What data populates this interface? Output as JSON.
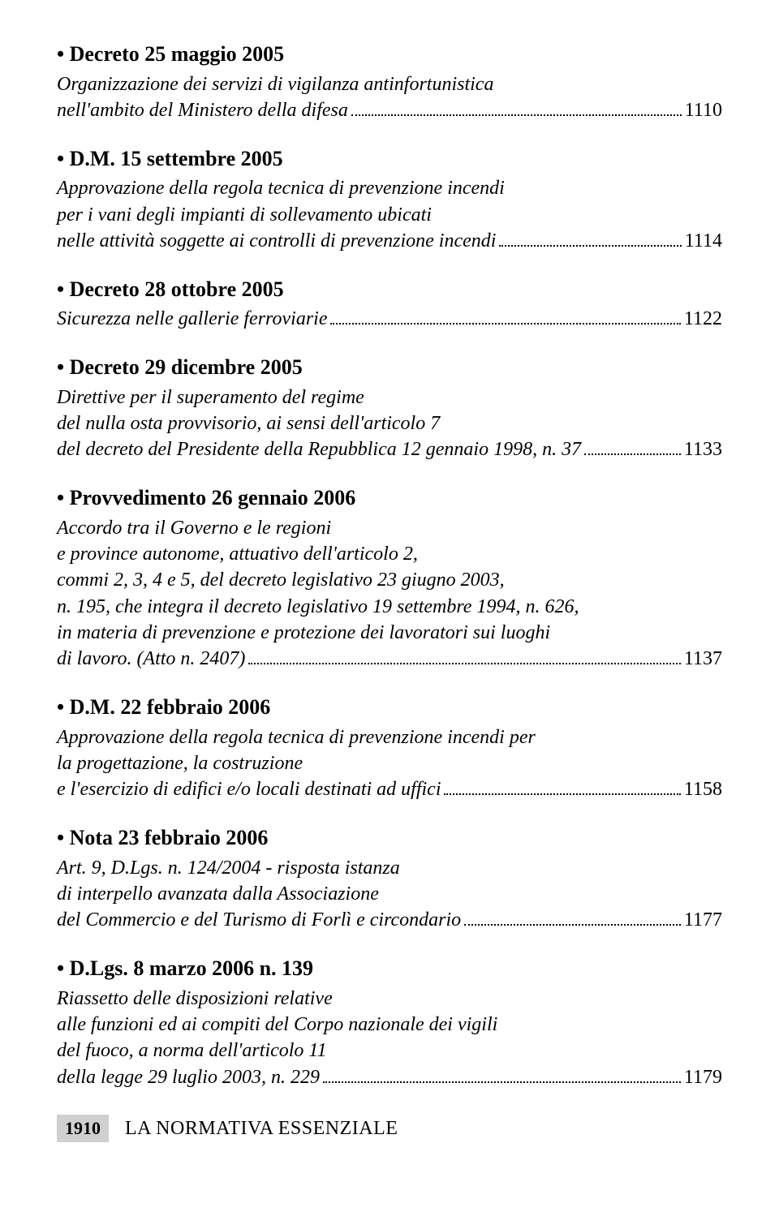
{
  "entries": [
    {
      "title": "• Decreto 25 maggio 2005",
      "desc_lines": [
        "Organizzazione dei servizi di vigilanza antinfortunistica"
      ],
      "last_line": "nell'ambito del Ministero della difesa",
      "page": "1110"
    },
    {
      "title": "• D.M. 15 settembre 2005",
      "desc_lines": [
        "Approvazione della regola tecnica di prevenzione incendi",
        "per i vani degli impianti di sollevamento ubicati"
      ],
      "last_line": "nelle attività soggette ai controlli di prevenzione incendi",
      "page": "1114"
    },
    {
      "title": "• Decreto 28 ottobre 2005",
      "desc_lines": [],
      "last_line": "Sicurezza nelle gallerie ferroviarie",
      "page": "1122"
    },
    {
      "title": "• Decreto 29 dicembre 2005",
      "desc_lines": [
        "Direttive per il superamento del regime",
        "del nulla osta provvisorio, ai sensi dell'articolo 7"
      ],
      "last_line": "del decreto del Presidente della Repubblica 12 gennaio 1998, n. 37",
      "page": "1133"
    },
    {
      "title": "• Provvedimento 26 gennaio 2006",
      "desc_lines": [
        "Accordo tra il Governo e le regioni",
        "e province autonome, attuativo dell'articolo 2,",
        "commi 2, 3, 4 e 5, del decreto legislativo 23 giugno 2003,",
        "n. 195, che integra il decreto legislativo 19 settembre 1994, n. 626,",
        "in materia di prevenzione e protezione dei lavoratori sui luoghi"
      ],
      "last_line": "di lavoro. (Atto n. 2407)",
      "page": "1137"
    },
    {
      "title": "• D.M. 22 febbraio 2006",
      "desc_lines": [
        "Approvazione della regola tecnica di prevenzione incendi per",
        "la progettazione, la costruzione"
      ],
      "last_line": "e l'esercizio di edifici e/o locali destinati ad uffici",
      "page": "1158"
    },
    {
      "title": "• Nota 23 febbraio 2006",
      "desc_lines": [
        "Art. 9, D.Lgs. n. 124/2004 - risposta istanza",
        "di interpello avanzata dalla Associazione"
      ],
      "last_line": "del Commercio e del Turismo di Forlì e circondario",
      "page": "1177"
    },
    {
      "title": "• D.Lgs. 8 marzo 2006 n. 139",
      "desc_lines": [
        "Riassetto delle disposizioni relative",
        "alle funzioni ed ai compiti del Corpo nazionale dei vigili",
        "del fuoco, a norma dell'articolo 11"
      ],
      "last_line": "della legge 29 luglio 2003, n. 229",
      "page": "1179"
    }
  ],
  "footer": {
    "page_number": "1910",
    "label": "LA NORMATIVA ESSENZIALE"
  }
}
